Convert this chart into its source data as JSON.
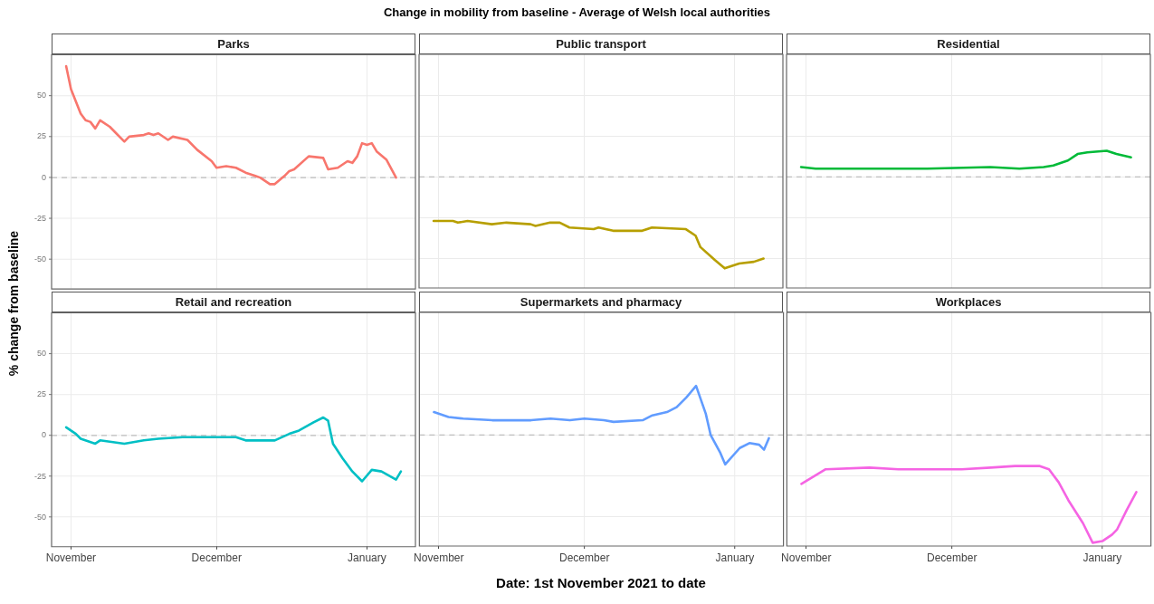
{
  "chart_data": [
    {
      "type": "other",
      "title": "Change in mobility from baseline - Average of Welsh local authorities"
    },
    {
      "type": "line",
      "title": "Parks",
      "tick_labels": "y",
      "grid": true,
      "xlim": [
        "2021-10-28",
        "2022-01-11"
      ],
      "ylim": [
        -68,
        75
      ],
      "xticks": [
        {
          "value": "2021-11-01",
          "label": null
        },
        {
          "value": "2021-12-01",
          "label": null
        },
        {
          "value": "2022-01-01",
          "label": null
        }
      ],
      "yticks": [
        -50,
        -25,
        0,
        25,
        50
      ],
      "ref_lines": [
        {
          "axis": "y",
          "value": 0,
          "color": "#bdbdbd",
          "line_style": "dashed"
        }
      ],
      "series": [
        {
          "color": "#f8766d",
          "x": [
            "2021-10-31",
            "2021-11-01",
            "2021-11-03",
            "2021-11-04",
            "2021-11-05",
            "2021-11-06",
            "2021-11-07",
            "2021-11-09",
            "2021-11-10",
            "2021-11-12",
            "2021-11-13",
            "2021-11-16",
            "2021-11-17",
            "2021-11-18",
            "2021-11-19",
            "2021-11-21",
            "2021-11-22",
            "2021-11-25",
            "2021-11-27",
            "2021-11-30",
            "2021-12-01",
            "2021-12-03",
            "2021-12-05",
            "2021-12-07",
            "2021-12-09",
            "2021-12-10",
            "2021-12-12",
            "2021-12-13",
            "2021-12-15",
            "2021-12-16",
            "2021-12-17",
            "2021-12-20",
            "2021-12-23",
            "2021-12-24",
            "2021-12-26",
            "2021-12-28",
            "2021-12-29",
            "2021-12-30",
            "2021-12-31",
            "2022-01-01",
            "2022-01-02",
            "2022-01-03",
            "2022-01-05",
            "2022-01-07"
          ],
          "values": [
            68,
            54,
            39,
            35,
            34,
            30,
            35,
            31,
            28,
            22,
            25,
            26,
            27,
            26,
            27,
            23,
            25,
            23,
            17,
            10,
            6,
            7,
            6,
            3,
            1,
            0,
            -4,
            -4,
            1,
            4,
            5,
            13,
            12,
            5,
            6,
            10,
            9,
            13,
            21,
            20,
            21,
            16,
            11,
            0
          ]
        }
      ]
    },
    {
      "type": "line",
      "title": "Public transport",
      "tick_labels": false,
      "grid": true,
      "xlim": [
        "2021-10-28",
        "2022-01-11"
      ],
      "ylim": [
        -68,
        75
      ],
      "xticks": [
        {
          "value": "2021-11-01",
          "label": null
        },
        {
          "value": "2021-12-01",
          "label": null
        },
        {
          "value": "2022-01-01",
          "label": null
        }
      ],
      "yticks": [
        {
          "value": -50,
          "label": null
        },
        {
          "value": -25,
          "label": null
        },
        {
          "value": 0,
          "label": null
        },
        {
          "value": 25,
          "label": null
        },
        {
          "value": 50,
          "label": null
        }
      ],
      "ref_lines": [
        {
          "axis": "y",
          "value": 0,
          "color": "#bdbdbd",
          "line_style": "dashed"
        }
      ],
      "series": [
        {
          "color": "#b79f00",
          "x": [
            "2021-10-31",
            "2021-11-04",
            "2021-11-05",
            "2021-11-07",
            "2021-11-12",
            "2021-11-15",
            "2021-11-20",
            "2021-11-21",
            "2021-11-24",
            "2021-11-26",
            "2021-11-28",
            "2021-12-03",
            "2021-12-04",
            "2021-12-07",
            "2021-12-13",
            "2021-12-15",
            "2021-12-22",
            "2021-12-24",
            "2021-12-25",
            "2021-12-28",
            "2021-12-30",
            "2022-01-02",
            "2022-01-05",
            "2022-01-07"
          ],
          "values": [
            -27,
            -27,
            -28,
            -27,
            -29,
            -28,
            -29,
            -30,
            -28,
            -28,
            -31,
            -32,
            -31,
            -33,
            -33,
            -31,
            -32,
            -36,
            -43,
            -51,
            -56,
            -53,
            -52,
            -50
          ]
        }
      ]
    },
    {
      "type": "line",
      "title": "Residential",
      "tick_labels": false,
      "grid": true,
      "xlim": [
        "2021-10-28",
        "2022-01-11"
      ],
      "ylim": [
        -68,
        75
      ],
      "xticks": [
        {
          "value": "2021-11-01",
          "label": null
        },
        {
          "value": "2021-12-01",
          "label": null
        },
        {
          "value": "2022-01-01",
          "label": null
        }
      ],
      "yticks": [
        {
          "value": -50,
          "label": null
        },
        {
          "value": -25,
          "label": null
        },
        {
          "value": 0,
          "label": null
        },
        {
          "value": 25,
          "label": null
        },
        {
          "value": 50,
          "label": null
        }
      ],
      "ref_lines": [
        {
          "axis": "y",
          "value": 0,
          "color": "#bdbdbd",
          "line_style": "dashed"
        }
      ],
      "series": [
        {
          "color": "#00ba38",
          "x": [
            "2021-10-31",
            "2021-11-03",
            "2021-11-14",
            "2021-11-26",
            "2021-12-09",
            "2021-12-15",
            "2021-12-20",
            "2021-12-22",
            "2021-12-25",
            "2021-12-27",
            "2021-12-29",
            "2022-01-02",
            "2022-01-04",
            "2022-01-07"
          ],
          "values": [
            6,
            5,
            5,
            5,
            6,
            5,
            6,
            7,
            10,
            14,
            15,
            16,
            14,
            12
          ]
        }
      ]
    },
    {
      "type": "line",
      "title": "Retail and recreation",
      "ylabel": "% change from baseline",
      "grid": true,
      "xlim": [
        "2021-10-28",
        "2022-01-11"
      ],
      "ylim": [
        -68,
        75
      ],
      "xticks": [
        {
          "value": "2021-11-01",
          "label": "November"
        },
        {
          "value": "2021-12-01",
          "label": "December"
        },
        {
          "value": "2022-01-01",
          "label": "January"
        }
      ],
      "yticks": [
        -50,
        -25,
        0,
        25,
        50
      ],
      "ref_lines": [
        {
          "axis": "y",
          "value": 0,
          "color": "#bdbdbd",
          "line_style": "dashed"
        }
      ],
      "series": [
        {
          "color": "#00bfc4",
          "x": [
            "2021-10-31",
            "2021-11-02",
            "2021-11-03",
            "2021-11-06",
            "2021-11-07",
            "2021-11-12",
            "2021-11-16",
            "2021-11-19",
            "2021-11-24",
            "2021-11-30",
            "2021-12-05",
            "2021-12-07",
            "2021-12-13",
            "2021-12-16",
            "2021-12-18",
            "2021-12-21",
            "2021-12-23",
            "2021-12-24",
            "2021-12-25",
            "2021-12-27",
            "2021-12-29",
            "2021-12-31",
            "2022-01-02",
            "2022-01-04",
            "2022-01-07",
            "2022-01-08"
          ],
          "values": [
            5,
            1,
            -2,
            -5,
            -3,
            -5,
            -3,
            -2,
            -1,
            -1,
            -1,
            -3,
            -3,
            1,
            3,
            8,
            11,
            9,
            -5,
            -14,
            -22,
            -28,
            -21,
            -22,
            -27,
            -22
          ]
        }
      ]
    },
    {
      "type": "line",
      "title": "Supermarkets and pharmacy",
      "xlabel": "Date: 1st November 2021 to date",
      "tick_labels": "x",
      "grid": true,
      "xlim": [
        "2021-10-28",
        "2022-01-11"
      ],
      "ylim": [
        -68,
        75
      ],
      "xticks": [
        {
          "value": "2021-11-01",
          "label": "November"
        },
        {
          "value": "2021-12-01",
          "label": "December"
        },
        {
          "value": "2022-01-01",
          "label": "January"
        }
      ],
      "yticks": [
        {
          "value": -50,
          "label": null
        },
        {
          "value": -25,
          "label": null
        },
        {
          "value": 0,
          "label": null
        },
        {
          "value": 25,
          "label": null
        },
        {
          "value": 50,
          "label": null
        }
      ],
      "ref_lines": [
        {
          "axis": "y",
          "value": 0,
          "color": "#bdbdbd",
          "line_style": "dashed"
        }
      ],
      "series": [
        {
          "color": "#619cff",
          "x": [
            "2021-10-31",
            "2021-11-03",
            "2021-11-06",
            "2021-11-12",
            "2021-11-20",
            "2021-11-24",
            "2021-11-28",
            "2021-12-01",
            "2021-12-05",
            "2021-12-07",
            "2021-12-13",
            "2021-12-15",
            "2021-12-18",
            "2021-12-20",
            "2021-12-22",
            "2021-12-24",
            "2021-12-26",
            "2021-12-27",
            "2021-12-29",
            "2021-12-30",
            "2022-01-02",
            "2022-01-04",
            "2022-01-06",
            "2022-01-07",
            "2022-01-08"
          ],
          "values": [
            14,
            11,
            10,
            9,
            9,
            10,
            9,
            10,
            9,
            8,
            9,
            12,
            14,
            17,
            23,
            30,
            13,
            0,
            -11,
            -18,
            -8,
            -5,
            -6,
            -9,
            -2
          ]
        }
      ]
    },
    {
      "type": "line",
      "title": "Workplaces",
      "tick_labels": "x",
      "grid": true,
      "xlim": [
        "2021-10-28",
        "2022-01-11"
      ],
      "ylim": [
        -68,
        75
      ],
      "xticks": [
        {
          "value": "2021-11-01",
          "label": "November"
        },
        {
          "value": "2021-12-01",
          "label": "December"
        },
        {
          "value": "2022-01-01",
          "label": "January"
        }
      ],
      "yticks": [
        {
          "value": -50,
          "label": null
        },
        {
          "value": -25,
          "label": null
        },
        {
          "value": 0,
          "label": null
        },
        {
          "value": 25,
          "label": null
        },
        {
          "value": 50,
          "label": null
        }
      ],
      "ref_lines": [
        {
          "axis": "y",
          "value": 0,
          "color": "#bdbdbd",
          "line_style": "dashed"
        }
      ],
      "series": [
        {
          "color": "#f564e3",
          "x": [
            "2021-10-31",
            "2021-11-05",
            "2021-11-14",
            "2021-11-20",
            "2021-12-03",
            "2021-12-09",
            "2021-12-14",
            "2021-12-19",
            "2021-12-21",
            "2021-12-23",
            "2021-12-25",
            "2021-12-28",
            "2021-12-30",
            "2022-01-01",
            "2022-01-03",
            "2022-01-04",
            "2022-01-06",
            "2022-01-08"
          ],
          "values": [
            -30,
            -21,
            -20,
            -21,
            -21,
            -20,
            -19,
            -19,
            -21,
            -29,
            -40,
            -54,
            -66,
            -65,
            -61,
            -58,
            -46,
            -35
          ]
        }
      ]
    }
  ]
}
